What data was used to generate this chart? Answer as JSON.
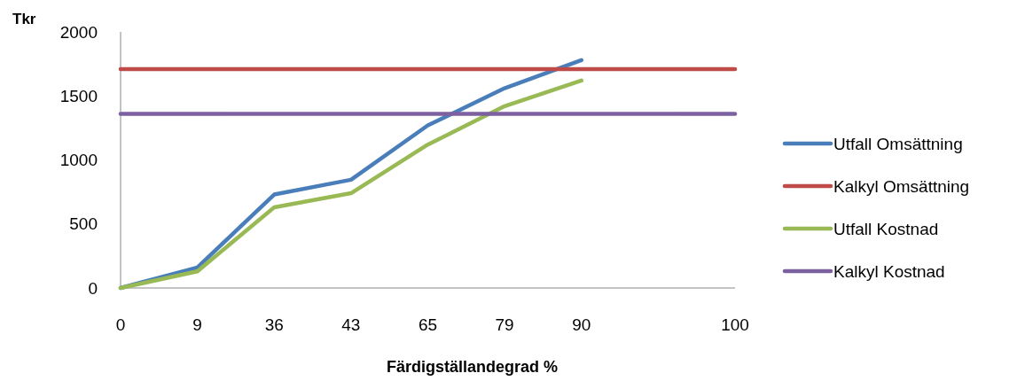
{
  "chart_data": {
    "type": "line",
    "ylabel": "Tkr",
    "xlabel": "Färdigställandegrad %",
    "categories": [
      "0",
      "9",
      "36",
      "43",
      "65",
      "79",
      "90",
      null,
      "100"
    ],
    "ylim": [
      0,
      2000
    ],
    "yticks": [
      0,
      500,
      1000,
      1500,
      2000
    ],
    "grid": false,
    "legend": "right",
    "marker": "none",
    "line_style": "solid",
    "series": [
      {
        "name": "Utfall Omsättning",
        "color": "#4a7ebb",
        "values": [
          0,
          160,
          730,
          845,
          1270,
          1560,
          1780,
          null,
          null
        ]
      },
      {
        "name": "Kalkyl Omsättning",
        "color": "#be4b48",
        "values": [
          1710,
          1710,
          1710,
          1710,
          1710,
          1710,
          1710,
          1710,
          1710
        ]
      },
      {
        "name": "Utfall Kostnad",
        "color": "#98b954",
        "values": [
          0,
          130,
          630,
          740,
          1120,
          1420,
          1620,
          null,
          null
        ]
      },
      {
        "name": "Kalkyl Kostnad",
        "color": "#7d60a0",
        "values": [
          1360,
          1360,
          1360,
          1360,
          1360,
          1360,
          1360,
          1360,
          1360
        ]
      }
    ]
  }
}
